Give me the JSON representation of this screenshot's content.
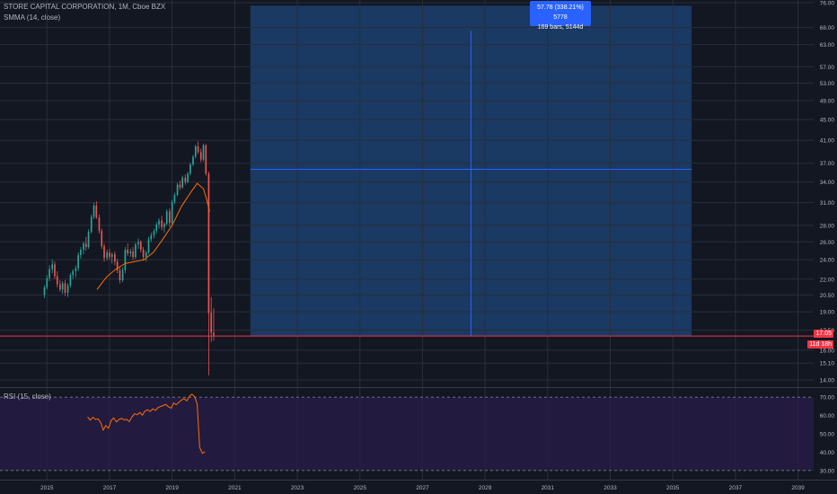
{
  "header": {
    "title": "STORE CAPITAL CORPORATION, 1M, Cboe BZX",
    "smma_label": "SMMA (14, close)",
    "rsi_label": "RSI (15, close)"
  },
  "measure": {
    "line1": "57.78 (338.21%) 5778",
    "line2": "169 bars, 5144d"
  },
  "tags": {
    "last_price": "17.05",
    "countdown": "11d 18h"
  },
  "colors": {
    "background": "#131722",
    "up": "#26a69a",
    "down": "#ef5350",
    "smma": "#ff6d00",
    "rsi": "#ff6d00",
    "rsi_band": "#2a1e4a",
    "measure_fill": "#1c3f6e",
    "measure_line": "#2962ff",
    "price_line": "#f23645"
  },
  "chart_data": [
    {
      "type": "candlestick",
      "title": "STORE CAPITAL CORPORATION, 1M, Cboe BZX",
      "y_scale": "log",
      "ylim": [
        14,
        76
      ],
      "y_ticks": [
        "76.00",
        "68.00",
        "63.00",
        "57.00",
        "53.00",
        "49.00",
        "45.00",
        "41.00",
        "37.00",
        "34.00",
        "31.00",
        "28.00",
        "26.00",
        "24.00",
        "22.00",
        "20.50",
        "19.00",
        "17.50",
        "16.00",
        "15.10",
        "14.00"
      ],
      "x_ticks": [
        "2015",
        "2017",
        "2019",
        "2021",
        "2023",
        "2025",
        "2027",
        "2029",
        "2031",
        "2033",
        "2035",
        "2037",
        "2039"
      ],
      "xlim_years": [
        2013.5,
        2039.5
      ],
      "series": [
        {
          "name": "SMMA (14, close)",
          "points": [
            [
              2016.6,
              21.0
            ],
            [
              2016.9,
              22.2
            ],
            [
              2017.2,
              23.0
            ],
            [
              2017.5,
              23.6
            ],
            [
              2017.8,
              23.8
            ],
            [
              2018.1,
              24.0
            ],
            [
              2018.4,
              24.8
            ],
            [
              2018.7,
              26.3
            ],
            [
              2019.0,
              28.0
            ],
            [
              2019.3,
              30.5
            ],
            [
              2019.6,
              32.5
            ],
            [
              2019.8,
              33.8
            ],
            [
              2020.0,
              33.0
            ],
            [
              2020.1,
              31.5
            ],
            [
              2020.2,
              29.8
            ]
          ]
        }
      ],
      "candles": [
        [
          2014.92,
          20.5,
          21.4,
          20.2,
          21.2
        ],
        [
          2015.0,
          21.2,
          22.4,
          21.0,
          22.1
        ],
        [
          2015.08,
          22.1,
          23.4,
          21.8,
          23.0
        ],
        [
          2015.17,
          23.0,
          24.0,
          22.6,
          23.5
        ],
        [
          2015.25,
          23.5,
          23.8,
          22.0,
          22.3
        ],
        [
          2015.33,
          22.3,
          22.8,
          21.2,
          21.5
        ],
        [
          2015.42,
          21.5,
          21.9,
          20.8,
          21.0
        ],
        [
          2015.5,
          21.0,
          21.8,
          20.6,
          21.6
        ],
        [
          2015.58,
          21.6,
          21.9,
          20.4,
          20.7
        ],
        [
          2015.67,
          20.7,
          21.6,
          20.3,
          21.4
        ],
        [
          2015.75,
          21.4,
          22.6,
          21.2,
          22.4
        ],
        [
          2015.83,
          22.4,
          23.0,
          22.0,
          22.8
        ],
        [
          2015.92,
          22.8,
          23.4,
          22.2,
          23.1
        ],
        [
          2016.0,
          23.1,
          24.8,
          22.8,
          24.5
        ],
        [
          2016.08,
          24.5,
          25.4,
          24.1,
          25.1
        ],
        [
          2016.17,
          25.1,
          26.0,
          24.6,
          25.8
        ],
        [
          2016.25,
          25.8,
          26.6,
          25.0,
          25.4
        ],
        [
          2016.33,
          25.4,
          27.5,
          25.2,
          27.2
        ],
        [
          2016.42,
          27.2,
          29.4,
          27.0,
          29.1
        ],
        [
          2016.5,
          29.1,
          31.0,
          28.8,
          30.6
        ],
        [
          2016.58,
          30.6,
          31.2,
          28.8,
          29.0
        ],
        [
          2016.67,
          29.0,
          29.4,
          27.0,
          27.3
        ],
        [
          2016.75,
          27.3,
          27.6,
          25.2,
          25.5
        ],
        [
          2016.83,
          25.5,
          25.8,
          23.8,
          24.2
        ],
        [
          2016.92,
          24.2,
          25.1,
          23.9,
          24.8
        ],
        [
          2017.0,
          24.8,
          25.2,
          24.0,
          24.3
        ],
        [
          2017.08,
          24.3,
          24.8,
          23.6,
          24.6
        ],
        [
          2017.17,
          24.6,
          24.9,
          23.4,
          23.8
        ],
        [
          2017.25,
          23.8,
          24.1,
          22.6,
          22.9
        ],
        [
          2017.33,
          22.9,
          23.2,
          21.6,
          21.9
        ],
        [
          2017.42,
          21.9,
          23.2,
          21.7,
          22.9
        ],
        [
          2017.5,
          22.9,
          25.4,
          22.6,
          25.1
        ],
        [
          2017.58,
          25.1,
          25.8,
          24.4,
          24.7
        ],
        [
          2017.67,
          24.7,
          25.2,
          24.3,
          24.9
        ],
        [
          2017.75,
          24.9,
          25.4,
          24.0,
          24.3
        ],
        [
          2017.83,
          24.3,
          25.9,
          24.1,
          25.7
        ],
        [
          2017.92,
          25.7,
          26.4,
          25.2,
          26.0
        ],
        [
          2018.0,
          26.0,
          26.2,
          24.8,
          25.1
        ],
        [
          2018.08,
          25.1,
          25.4,
          23.9,
          24.3
        ],
        [
          2018.17,
          24.3,
          25.0,
          23.8,
          24.8
        ],
        [
          2018.25,
          24.8,
          26.6,
          24.6,
          26.3
        ],
        [
          2018.33,
          26.3,
          27.1,
          26.0,
          26.8
        ],
        [
          2018.42,
          26.8,
          27.6,
          26.4,
          27.3
        ],
        [
          2018.5,
          27.3,
          28.4,
          27.0,
          28.1
        ],
        [
          2018.58,
          28.1,
          28.9,
          27.6,
          28.6
        ],
        [
          2018.67,
          28.6,
          29.2,
          27.4,
          27.8
        ],
        [
          2018.75,
          27.8,
          28.4,
          27.1,
          28.2
        ],
        [
          2018.83,
          28.2,
          30.1,
          28.0,
          29.8
        ],
        [
          2018.92,
          29.8,
          30.2,
          27.8,
          28.3
        ],
        [
          2019.0,
          28.3,
          31.4,
          28.0,
          31.1
        ],
        [
          2019.08,
          31.1,
          32.4,
          30.8,
          32.1
        ],
        [
          2019.17,
          32.1,
          33.9,
          31.9,
          33.6
        ],
        [
          2019.25,
          33.6,
          34.2,
          32.8,
          33.2
        ],
        [
          2019.33,
          33.2,
          35.0,
          33.0,
          34.7
        ],
        [
          2019.42,
          34.7,
          35.2,
          33.6,
          34.0
        ],
        [
          2019.5,
          34.0,
          35.6,
          33.8,
          35.3
        ],
        [
          2019.58,
          35.3,
          37.1,
          35.0,
          36.8
        ],
        [
          2019.67,
          36.8,
          38.4,
          36.5,
          38.1
        ],
        [
          2019.75,
          38.1,
          40.2,
          37.8,
          39.9
        ],
        [
          2019.83,
          39.9,
          40.8,
          38.6,
          38.9
        ],
        [
          2019.92,
          38.9,
          39.5,
          37.2,
          37.6
        ],
        [
          2020.0,
          37.6,
          40.4,
          37.3,
          40.1
        ],
        [
          2020.08,
          40.1,
          40.3,
          35.0,
          35.3
        ],
        [
          2020.17,
          35.3,
          35.6,
          14.3,
          18.9
        ],
        [
          2020.25,
          18.9,
          20.3,
          16.6,
          17.3
        ],
        [
          2020.33,
          17.3,
          19.3,
          16.7,
          17.1
        ]
      ]
    },
    {
      "type": "line",
      "title": "RSI (15, close)",
      "ylim": [
        25,
        75
      ],
      "y_ticks": [
        "70.00",
        "60.00",
        "50.00",
        "40.00",
        "30.00"
      ],
      "band": [
        30,
        70
      ],
      "series": [
        {
          "name": "RSI (15, close)",
          "points": [
            [
              2016.0,
              59.2
            ],
            [
              2016.08,
              57.5
            ],
            [
              2016.17,
              59.0
            ],
            [
              2016.25,
              57.8
            ],
            [
              2016.33,
              58.2
            ],
            [
              2016.42,
              56.1
            ],
            [
              2016.5,
              52.0
            ],
            [
              2016.58,
              54.5
            ],
            [
              2016.67,
              53.0
            ],
            [
              2016.75,
              57.2
            ],
            [
              2016.83,
              58.7
            ],
            [
              2016.92,
              56.5
            ],
            [
              2017.0,
              57.8
            ],
            [
              2017.08,
              58.4
            ],
            [
              2017.17,
              57.6
            ],
            [
              2017.25,
              57.9
            ],
            [
              2017.33,
              56.7
            ],
            [
              2017.42,
              59.3
            ],
            [
              2017.5,
              61.0
            ],
            [
              2017.58,
              60.4
            ],
            [
              2017.67,
              61.6
            ],
            [
              2017.75,
              60.2
            ],
            [
              2017.83,
              62.4
            ],
            [
              2017.92,
              63.1
            ],
            [
              2018.0,
              62.2
            ],
            [
              2018.08,
              63.6
            ],
            [
              2018.17,
              62.8
            ],
            [
              2018.25,
              64.3
            ],
            [
              2018.33,
              64.9
            ],
            [
              2018.42,
              65.5
            ],
            [
              2018.5,
              66.0
            ],
            [
              2018.58,
              64.8
            ],
            [
              2018.67,
              64.0
            ],
            [
              2018.75,
              66.8
            ],
            [
              2018.83,
              65.9
            ],
            [
              2018.92,
              67.2
            ],
            [
              2019.0,
              68.4
            ],
            [
              2019.08,
              69.2
            ],
            [
              2019.17,
              68.0
            ],
            [
              2019.25,
              70.5
            ],
            [
              2019.33,
              71.6
            ],
            [
              2019.42,
              70.3
            ],
            [
              2019.5,
              66.3
            ],
            [
              2019.58,
              42.6
            ],
            [
              2019.67,
              39.4
            ],
            [
              2019.75,
              40.2
            ]
          ]
        }
      ]
    }
  ]
}
